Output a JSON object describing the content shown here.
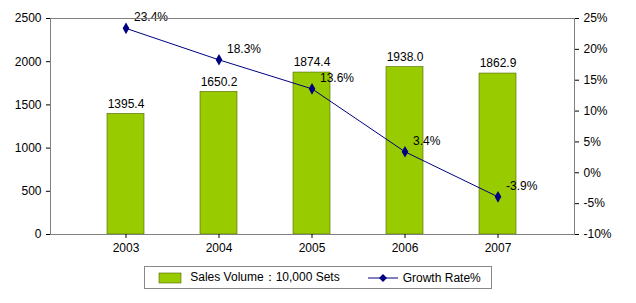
{
  "chart_data": {
    "type": "bar",
    "categories": [
      "2003",
      "2004",
      "2005",
      "2006",
      "2007"
    ],
    "series": [
      {
        "name": "Sales Volume：10,000 Sets",
        "type": "bar",
        "color": "#99cc00",
        "values": [
          1395.4,
          1650.2,
          1874.4,
          1938.0,
          1862.9
        ],
        "value_labels": [
          "1395.4",
          "1650.2",
          "1874.4",
          "1938.0",
          "1862.9"
        ]
      },
      {
        "name": "Growth Rate%",
        "type": "line",
        "axis": "y2",
        "color": "#000080",
        "marker": "diamond",
        "values": [
          23.4,
          18.3,
          13.6,
          3.4,
          -3.9
        ],
        "value_labels": [
          "23.4%",
          "18.3%",
          "13.6%",
          "3.4%",
          "-3.9%"
        ]
      }
    ],
    "ylim": [
      0,
      2500
    ],
    "yticks": [
      0,
      500,
      1000,
      1500,
      2000,
      2500
    ],
    "y2lim": [
      -10,
      25
    ],
    "y2ticks": [
      {
        "value": -10,
        "label": "-10%"
      },
      {
        "value": -5,
        "label": "-5%"
      },
      {
        "value": 0,
        "label": "0%"
      },
      {
        "value": 5,
        "label": "5%"
      },
      {
        "value": 10,
        "label": "10%"
      },
      {
        "value": 15,
        "label": "15%"
      },
      {
        "value": 20,
        "label": "20%"
      },
      {
        "value": 25,
        "label": "25%"
      }
    ],
    "data_labels": true,
    "legend": "bottom",
    "grid": false
  }
}
